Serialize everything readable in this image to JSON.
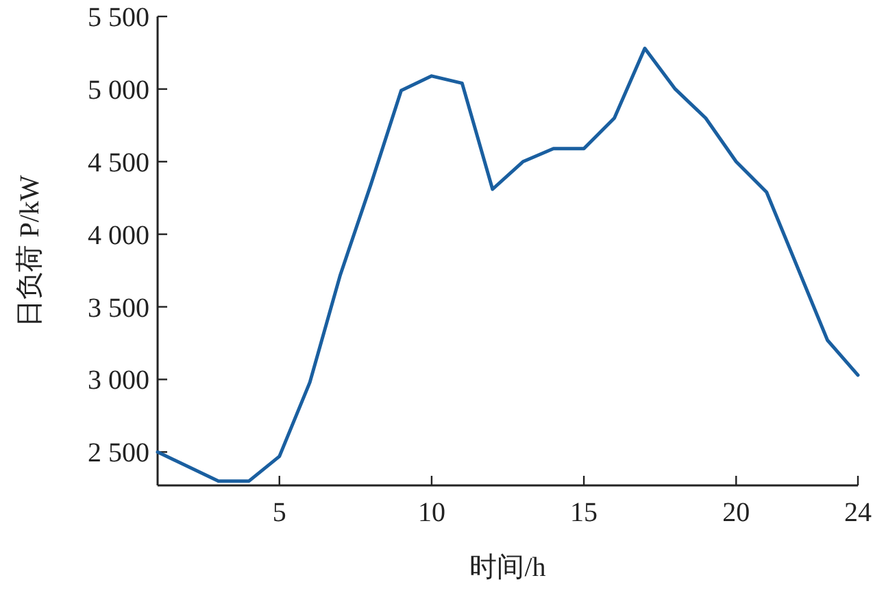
{
  "chart_data": {
    "type": "line",
    "xlabel": "时间/h",
    "ylabel": "日负荷 P/kW",
    "series": [
      {
        "color": "#1a5fa0",
        "x": [
          1,
          3,
          4,
          5,
          6,
          7,
          8,
          9,
          10,
          11,
          12,
          13,
          14,
          15,
          16,
          17,
          18,
          19,
          20,
          21,
          23,
          24
        ],
        "values": [
          2500,
          2300,
          2300,
          2470,
          2980,
          3720,
          4340,
          4990,
          5090,
          5040,
          4310,
          4500,
          4590,
          4590,
          4800,
          5280,
          5000,
          4800,
          4500,
          4290,
          3270,
          3030
        ]
      }
    ],
    "xlim": [
      1,
      24
    ],
    "xticks": [
      5,
      10,
      15,
      20,
      24
    ],
    "ylim": [
      2270,
      5500
    ],
    "yticks": [
      {
        "value": 2500,
        "label": "2 500"
      },
      {
        "value": 3000,
        "label": "3 000"
      },
      {
        "value": 3500,
        "label": "3 500"
      },
      {
        "value": 4000,
        "label": "4 000"
      },
      {
        "value": 4500,
        "label": "4 500"
      },
      {
        "value": 5000,
        "label": "5 000"
      },
      {
        "value": 5500,
        "label": "5 500"
      }
    ],
    "grid": false,
    "marker": "none",
    "line_style": "solid"
  }
}
